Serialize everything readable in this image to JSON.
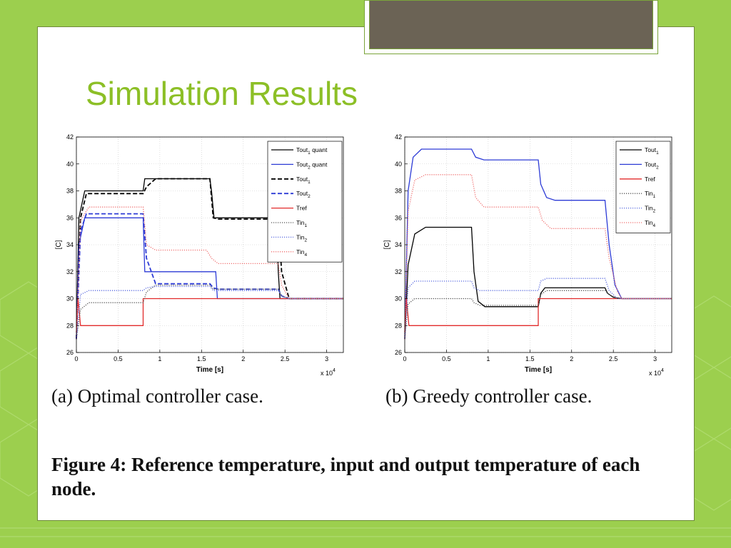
{
  "slide": {
    "title": "Simulation Results",
    "colors": {
      "background": "#9ccf4e",
      "title": "#8cbf26",
      "title_box": "#6b6355"
    },
    "captions": {
      "a": "(a) Optimal controller case.",
      "b": "(b) Greedy controller case."
    },
    "figure_caption": "Figure 4: Reference temperature, input and output temperature of each node."
  },
  "chart_data": [
    {
      "type": "line",
      "xlabel": "Time [s]",
      "ylabel": "[C]",
      "x_multiplier": "x 10",
      "x_multiplier_exp": "4",
      "xlim": [
        0,
        3.2
      ],
      "ylim": [
        26,
        42
      ],
      "xticks": [
        0,
        0.5,
        1,
        1.5,
        2,
        2.5,
        3
      ],
      "xtick_labels": [
        "0",
        "0.5",
        "1",
        "1.5",
        "2",
        "2.5",
        "3"
      ],
      "yticks": [
        26,
        28,
        30,
        32,
        34,
        36,
        38,
        40,
        42
      ],
      "grid": true,
      "legend_position": "top-right",
      "series": [
        {
          "name": "Tout1 quant",
          "base": "Tout",
          "sub": "1",
          "suffix": " quant",
          "color": "#000000",
          "style": "solid",
          "x": [
            0,
            0.03,
            0.1,
            0.8,
            0.82,
            1.6,
            1.62,
            1.65,
            1.67,
            2.4,
            2.42,
            2.44,
            2.5,
            3.2
          ],
          "y": [
            27,
            36,
            38,
            38,
            38.9,
            38.9,
            38,
            36,
            36,
            36,
            32,
            30,
            30,
            30
          ]
        },
        {
          "name": "Tout2 quant",
          "base": "Tout",
          "sub": "2",
          "suffix": " quant",
          "color": "#2d3bd6",
          "style": "solid",
          "x": [
            0,
            0.03,
            0.1,
            0.8,
            0.82,
            1.67,
            1.69,
            3.2
          ],
          "y": [
            27,
            34,
            36,
            36,
            32,
            32,
            30,
            30
          ]
        },
        {
          "name": "Tout1",
          "base": "Tout",
          "sub": "1",
          "suffix": "",
          "color": "#000000",
          "style": "dashed",
          "x": [
            0,
            0.05,
            0.12,
            0.8,
            0.84,
            0.95,
            1.6,
            1.64,
            1.7,
            2.42,
            2.46,
            2.55,
            3.2
          ],
          "y": [
            27,
            36,
            37.8,
            37.8,
            38.3,
            38.9,
            38.9,
            36,
            35.9,
            35.9,
            32,
            30,
            30
          ]
        },
        {
          "name": "Tout2",
          "base": "Tout",
          "sub": "2",
          "suffix": "",
          "color": "#2d3bd6",
          "style": "dashed",
          "x": [
            0,
            0.05,
            0.12,
            0.8,
            0.84,
            0.95,
            1.6,
            1.64,
            1.7,
            2.42,
            2.46,
            2.55,
            3.2
          ],
          "y": [
            27,
            35,
            36.3,
            36.3,
            33,
            31.1,
            31.1,
            30.8,
            30.7,
            30.7,
            30.2,
            30,
            30
          ]
        },
        {
          "name": "Tref",
          "base": "Tref",
          "sub": "",
          "suffix": "",
          "color": "#e22b2b",
          "style": "solid",
          "x": [
            0,
            0.02,
            0.05,
            0.8,
            0.8,
            3.2
          ],
          "y": [
            27.5,
            30,
            28,
            28,
            30,
            30
          ]
        },
        {
          "name": "Tin1",
          "base": "Tin",
          "sub": "1",
          "suffix": "",
          "color": "#555555",
          "style": "dotted",
          "x": [
            0,
            0.05,
            0.15,
            0.8,
            0.84,
            0.95,
            1.6,
            1.64,
            1.7,
            2.42,
            2.46,
            2.55,
            3.2
          ],
          "y": [
            27,
            29.2,
            29.7,
            29.7,
            30.5,
            31,
            31,
            30.7,
            30.7,
            30.7,
            30.2,
            30,
            30
          ]
        },
        {
          "name": "Tin2",
          "base": "Tin",
          "sub": "2",
          "suffix": "",
          "color": "#5a6be0",
          "style": "dotted",
          "x": [
            0,
            0.05,
            0.15,
            0.8,
            0.84,
            0.95,
            1.6,
            1.64,
            1.7,
            2.42,
            2.46,
            2.55,
            3.2
          ],
          "y": [
            27,
            30.3,
            30.6,
            30.6,
            30.8,
            30.9,
            30.9,
            30.6,
            30.6,
            30.6,
            30.2,
            30,
            30
          ]
        },
        {
          "name": "Tin4",
          "base": "Tin",
          "sub": "4",
          "suffix": "",
          "color": "#f07070",
          "style": "dotted",
          "x": [
            0,
            0.05,
            0.15,
            0.8,
            0.84,
            0.95,
            1.56,
            1.62,
            1.7,
            2.42,
            2.46,
            2.55,
            3.2
          ],
          "y": [
            27,
            35.8,
            36.8,
            36.8,
            34,
            33.6,
            33.6,
            33,
            32.6,
            32.6,
            31,
            30,
            30
          ]
        }
      ]
    },
    {
      "type": "line",
      "xlabel": "Time [s]",
      "ylabel": "[C]",
      "x_multiplier": "x 10",
      "x_multiplier_exp": "4",
      "xlim": [
        0,
        3.2
      ],
      "ylim": [
        26,
        42
      ],
      "xticks": [
        0,
        0.5,
        1,
        1.5,
        2,
        2.5,
        3
      ],
      "xtick_labels": [
        "0",
        "0.5",
        "1",
        "1.5",
        "2",
        "2.5",
        "3"
      ],
      "yticks": [
        26,
        28,
        30,
        32,
        34,
        36,
        38,
        40,
        42
      ],
      "grid": true,
      "legend_position": "top-right",
      "series": [
        {
          "name": "Tout1",
          "base": "Tout",
          "sub": "1",
          "suffix": "",
          "color": "#000000",
          "style": "solid",
          "x": [
            0,
            0.04,
            0.12,
            0.25,
            0.8,
            0.83,
            0.88,
            0.96,
            1.6,
            1.63,
            1.68,
            2.4,
            2.43,
            2.5,
            2.6,
            3.2
          ],
          "y": [
            27,
            32.5,
            34.8,
            35.3,
            35.3,
            32,
            29.8,
            29.4,
            29.4,
            30.4,
            30.8,
            30.8,
            30.4,
            30.1,
            30,
            30
          ]
        },
        {
          "name": "Tout2",
          "base": "Tout",
          "sub": "2",
          "suffix": "",
          "color": "#2d3bd6",
          "style": "solid",
          "x": [
            0,
            0.04,
            0.1,
            0.2,
            0.8,
            0.85,
            0.95,
            1.6,
            1.63,
            1.7,
            1.8,
            2.4,
            2.45,
            2.52,
            2.6,
            3.2
          ],
          "y": [
            27,
            38,
            40.5,
            41.1,
            41.1,
            40.5,
            40.3,
            40.3,
            38.5,
            37.5,
            37.3,
            37.3,
            34,
            31,
            30,
            30
          ]
        },
        {
          "name": "Tref",
          "base": "Tref",
          "sub": "",
          "suffix": "",
          "color": "#e22b2b",
          "style": "solid",
          "x": [
            0,
            0.02,
            0.05,
            1.6,
            1.6,
            3.2
          ],
          "y": [
            27.5,
            30,
            28,
            28,
            30,
            30
          ]
        },
        {
          "name": "Tin1",
          "base": "Tin",
          "sub": "1",
          "suffix": "",
          "color": "#555555",
          "style": "dotted",
          "x": [
            0,
            0.04,
            0.12,
            0.8,
            0.83,
            0.9,
            1.6,
            1.63,
            1.7,
            2.4,
            2.45,
            2.55,
            3.2
          ],
          "y": [
            27,
            29.6,
            30,
            30,
            29.7,
            29.5,
            29.5,
            30.3,
            30.6,
            30.6,
            30.3,
            30,
            30
          ]
        },
        {
          "name": "Tin2",
          "base": "Tin",
          "sub": "2",
          "suffix": "",
          "color": "#5a6be0",
          "style": "dotted",
          "x": [
            0,
            0.04,
            0.12,
            0.8,
            0.83,
            0.9,
            1.6,
            1.63,
            1.7,
            2.4,
            2.45,
            2.55,
            3.2
          ],
          "y": [
            27,
            30.8,
            31.3,
            31.3,
            30.8,
            30.6,
            30.6,
            31.3,
            31.5,
            31.5,
            30.6,
            30,
            30
          ]
        },
        {
          "name": "Tin4",
          "base": "Tin",
          "sub": "4",
          "suffix": "",
          "color": "#f07070",
          "style": "dotted",
          "x": [
            0,
            0.04,
            0.12,
            0.25,
            0.8,
            0.85,
            0.95,
            1.6,
            1.65,
            1.75,
            2.4,
            2.45,
            2.55,
            2.6,
            3.2
          ],
          "y": [
            27,
            36.5,
            38.8,
            39.2,
            39.2,
            37.5,
            36.8,
            36.8,
            35.8,
            35.2,
            35.2,
            33,
            30.5,
            30,
            30
          ]
        }
      ]
    }
  ]
}
